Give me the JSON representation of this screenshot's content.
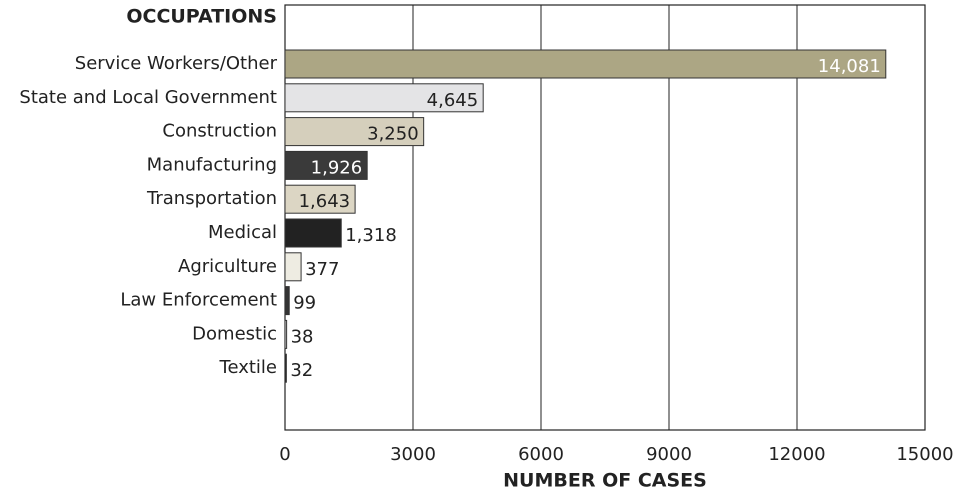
{
  "chart_data": {
    "type": "barh",
    "title": "OCCUPATIONS",
    "xlabel": "NUMBER OF CASES",
    "categories": [
      "Service Workers/Other",
      "State and Local Government",
      "Construction",
      "Manufacturing",
      "Transportation",
      "Medical",
      "Agriculture",
      "Law Enforcement",
      "Domestic",
      "Textile"
    ],
    "values": [
      14081,
      4645,
      3250,
      1926,
      1643,
      1318,
      377,
      99,
      38,
      32
    ],
    "value_labels": [
      "14,081",
      "4,645",
      "3,250",
      "1,926",
      "1,643",
      "1,318",
      "377",
      "99",
      "38",
      "32"
    ],
    "colors": [
      "#aca684",
      "#e4e4e6",
      "#d5cfbc",
      "#3a3a3a",
      "#dcd6c4",
      "#222222",
      "#eeece2",
      "#333333",
      "#dddddd",
      "#222222"
    ],
    "xlim": [
      0,
      15000
    ],
    "xticks": [
      0,
      3000,
      6000,
      9000,
      12000,
      15000
    ],
    "grid": true
  }
}
